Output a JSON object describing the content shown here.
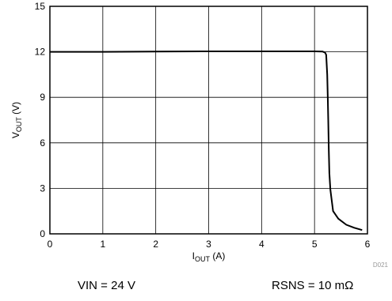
{
  "chart_data": {
    "type": "line",
    "title": "",
    "xlabel_main": "I",
    "xlabel_sub": "OUT",
    "xlabel_unit": " (A)",
    "ylabel_main": "V",
    "ylabel_sub": "OUT",
    "ylabel_unit": " (V)",
    "xlim": [
      0,
      6
    ],
    "ylim": [
      0,
      15
    ],
    "xticks": [
      "0",
      "1",
      "2",
      "3",
      "4",
      "5",
      "6"
    ],
    "yticks": [
      "0",
      "3",
      "6",
      "9",
      "12",
      "15"
    ],
    "grid": true,
    "legend": "none",
    "series": [
      {
        "color": "#000000",
        "x": [
          0,
          1,
          2,
          3,
          4,
          5,
          5.15,
          5.2,
          5.22,
          5.24,
          5.25,
          5.26,
          5.27,
          5.28,
          5.3,
          5.35,
          5.45,
          5.6,
          5.75,
          5.9
        ],
        "y": [
          12.0,
          12.0,
          12.02,
          12.03,
          12.03,
          12.03,
          12.02,
          11.95,
          11.8,
          10.5,
          9.0,
          7.5,
          5.5,
          4.0,
          2.9,
          1.5,
          1.0,
          0.6,
          0.4,
          0.25
        ]
      }
    ],
    "figure_code": "D021"
  },
  "conditions": {
    "left": "VIN = 24 V",
    "right": "RSNS = 10 mΩ"
  }
}
